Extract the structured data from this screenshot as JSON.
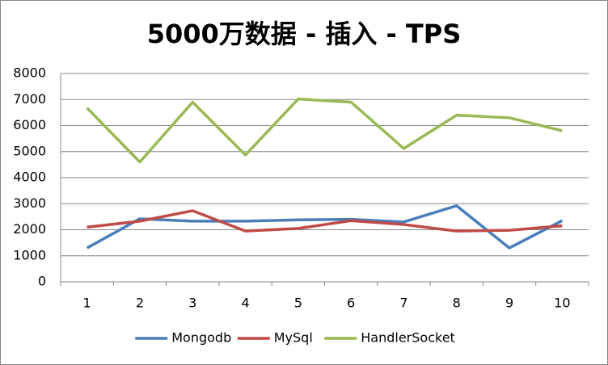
{
  "chart_data": {
    "type": "line",
    "title": "5000万数据 - 插入 - TPS",
    "categories": [
      "1",
      "2",
      "3",
      "4",
      "5",
      "6",
      "7",
      "8",
      "9",
      "10"
    ],
    "series": [
      {
        "name": "Mongodb",
        "color": "#4a7ebb",
        "values": [
          1300,
          2420,
          2330,
          2330,
          2380,
          2400,
          2300,
          2920,
          1300,
          2350
        ]
      },
      {
        "name": "MySql",
        "color": "#be4b48",
        "values": [
          2100,
          2330,
          2730,
          1950,
          2050,
          2350,
          2200,
          1950,
          1980,
          2150
        ]
      },
      {
        "name": "HandlerSocket",
        "color": "#98b954",
        "values": [
          6680,
          4600,
          6900,
          4870,
          7020,
          6900,
          5120,
          6400,
          6300,
          5800
        ]
      }
    ],
    "ylim": [
      0,
      8000
    ],
    "yticks": [
      0,
      1000,
      2000,
      3000,
      4000,
      5000,
      6000,
      7000,
      8000
    ],
    "grid": true,
    "legend": "bottom"
  }
}
